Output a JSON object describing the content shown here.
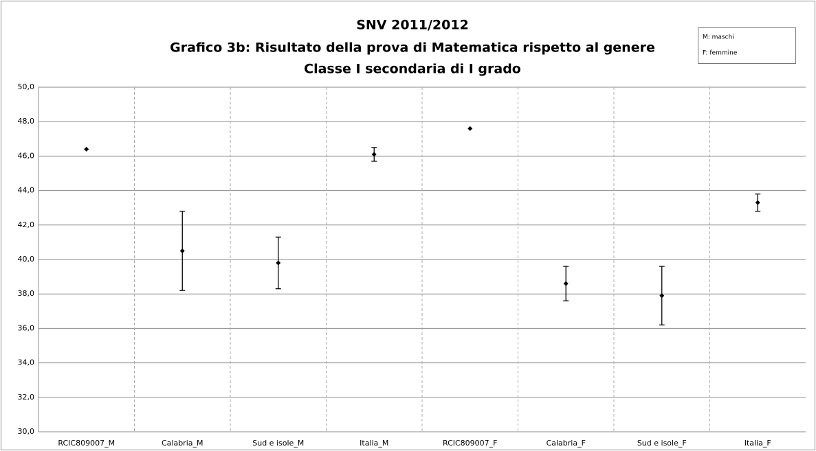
{
  "chart_data": {
    "type": "errorbar",
    "title_lines": [
      "SNV 2011/2012",
      "Grafico 3b: Risultato della prova di Matematica rispetto al genere",
      "Classe I secondaria di I grado"
    ],
    "legend_notes": [
      "M: maschi",
      "F: femmine"
    ],
    "categories": [
      "RCIC809007_M",
      "Calabria_M",
      "Sud e isole_M",
      "Italia_M",
      "RCIC809007_F",
      "Calabria_F",
      "Sud e isole_F",
      "Italia_F"
    ],
    "values": [
      46.4,
      40.5,
      39.8,
      46.1,
      47.6,
      38.6,
      37.9,
      43.3
    ],
    "errors": [
      null,
      2.3,
      1.5,
      0.4,
      null,
      1.0,
      1.7,
      0.5
    ],
    "color": "#000000",
    "ylim": [
      30,
      50
    ],
    "yticks": [
      {
        "value": 30,
        "label": "30,0"
      },
      {
        "value": 32,
        "label": "32,0"
      },
      {
        "value": 34,
        "label": "34,0"
      },
      {
        "value": 36,
        "label": "36,0"
      },
      {
        "value": 38,
        "label": "38,0"
      },
      {
        "value": 40,
        "label": "40,0"
      },
      {
        "value": 42,
        "label": "42,0"
      },
      {
        "value": 44,
        "label": "44,0"
      },
      {
        "value": 46,
        "label": "46,0"
      },
      {
        "value": 48,
        "label": "48,0"
      },
      {
        "value": 50,
        "label": "50,0"
      }
    ],
    "grid": true
  }
}
